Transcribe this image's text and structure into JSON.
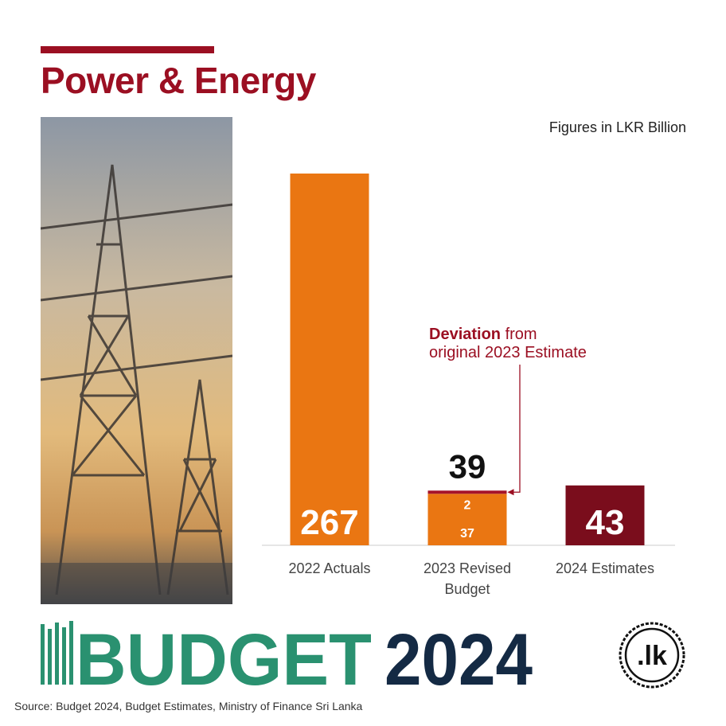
{
  "header": {
    "title": "Power & Energy"
  },
  "units_note": "Figures in LKR Billion",
  "chart_data": {
    "type": "bar",
    "categories": [
      "2022 Actuals",
      "2023 Revised Budget",
      "2024 Estimates"
    ],
    "category_lines": [
      [
        "2022 Actuals"
      ],
      [
        "2023 Revised",
        "Budget"
      ],
      [
        "2024 Estimates"
      ]
    ],
    "values": [
      267,
      39,
      43
    ],
    "value_labels": [
      "267",
      "39",
      "43"
    ],
    "stacked_2023": {
      "base": 37,
      "deviation": 2,
      "base_label": "37",
      "deviation_label": "2"
    },
    "annotation": {
      "bold": "Deviation",
      "rest": " from",
      "line2": "original 2023 Estimate"
    },
    "colors": [
      "#ea7612",
      "#ea7612",
      "#7a0d1c"
    ],
    "deviation_color": "#a5132a",
    "ylim": [
      0,
      267
    ]
  },
  "branding": {
    "word1": "BUDGET",
    "word2": "2024",
    "logo_text": ".lk"
  },
  "source": "Source: Budget 2024, Budget Estimates, Ministry of Finance Sri Lanka",
  "colors": {
    "accent": "#9b0f22",
    "green": "#2a9170",
    "navy": "#142a44"
  }
}
